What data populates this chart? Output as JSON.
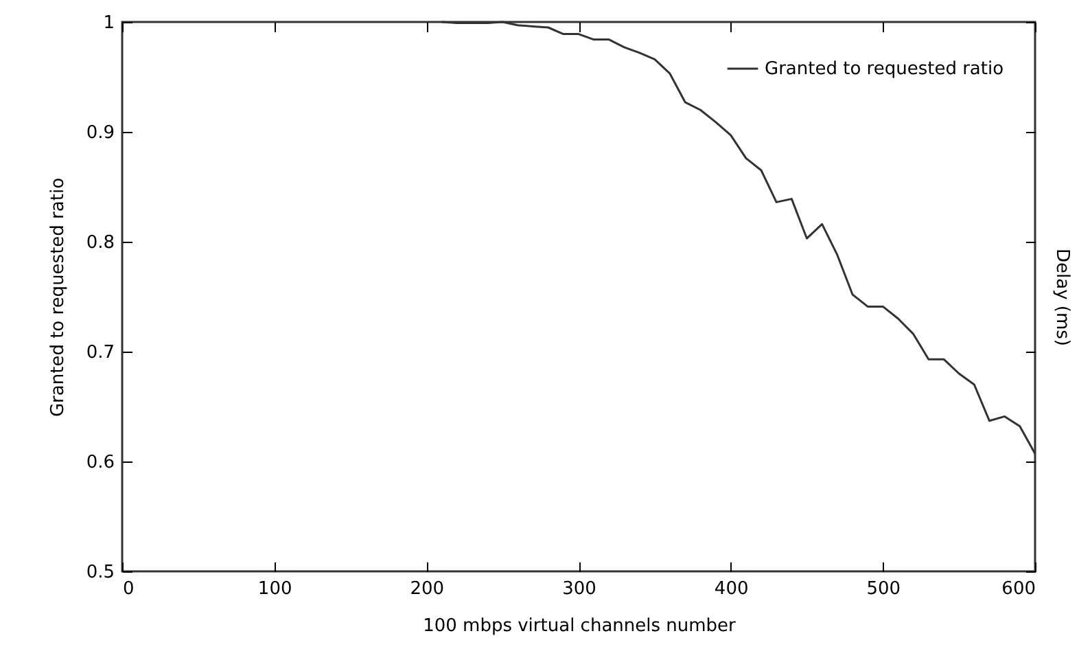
{
  "chart_data": {
    "type": "line",
    "xlabel": "100 mbps virtual channels number",
    "ylabel": "Granted to requested ratio",
    "y2label": "Delay (ms)",
    "x": [
      210,
      220,
      240,
      250,
      260,
      270,
      280,
      290,
      300,
      310,
      320,
      330,
      340,
      350,
      360,
      370,
      380,
      390,
      400,
      410,
      420,
      430,
      440,
      450,
      460,
      470,
      480,
      490,
      500,
      510,
      520,
      530,
      540,
      550,
      560,
      570,
      580,
      590,
      600
    ],
    "series": [
      {
        "name": "Granted to requested ratio",
        "color": "#333333",
        "values": [
          1.0,
          0.999,
          0.999,
          1.0,
          0.997,
          0.996,
          0.995,
          0.989,
          0.989,
          0.984,
          0.984,
          0.977,
          0.972,
          0.966,
          0.953,
          0.927,
          0.92,
          0.909,
          0.897,
          0.876,
          0.865,
          0.836,
          0.839,
          0.803,
          0.816,
          0.788,
          0.752,
          0.741,
          0.741,
          0.73,
          0.716,
          0.693,
          0.693,
          0.68,
          0.67,
          0.637,
          0.641,
          0.632,
          0.607
        ]
      }
    ],
    "xlim": [
      0,
      600
    ],
    "xticks": [
      0,
      100,
      200,
      300,
      400,
      500,
      600
    ],
    "ylim": [
      0.5,
      1
    ],
    "yticks": [
      0.5,
      0.6,
      0.7,
      0.8,
      0.9,
      1
    ],
    "legend": "top right",
    "grid": false,
    "marker": "none",
    "line_style": "solid"
  }
}
